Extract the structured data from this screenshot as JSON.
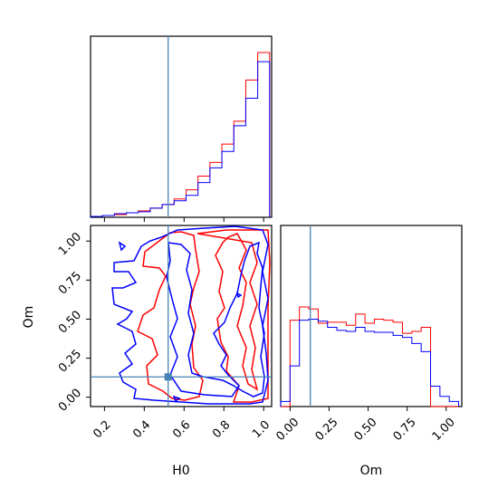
{
  "chart_data": {
    "type": "corner",
    "parameters": [
      "H0",
      "Om"
    ],
    "truth": {
      "H0": 0.52,
      "Om": 0.13
    },
    "truth_color": "#4682b4",
    "series": [
      {
        "color": "#ff0000"
      },
      {
        "color": "#0000ff"
      }
    ],
    "axes": {
      "H0": {
        "lim": [
          0.13,
          1.04
        ],
        "ticks": [
          0.2,
          0.4,
          0.6,
          0.8,
          1.0
        ],
        "tick_labels": [
          "0.2",
          "0.4",
          "0.6",
          "0.8",
          "1.0"
        ],
        "label": "H0"
      },
      "Om": {
        "lim": [
          -0.06,
          1.1
        ],
        "ticks": [
          0.0,
          0.25,
          0.5,
          0.75,
          1.0
        ],
        "tick_labels": [
          "0.00",
          "0.25",
          "0.50",
          "0.75",
          "1.00"
        ],
        "label": "Om"
      }
    },
    "hist_H0": {
      "bin_edges": [
        0.13,
        0.19,
        0.25,
        0.31,
        0.37,
        0.43,
        0.49,
        0.55,
        0.61,
        0.67,
        0.73,
        0.79,
        0.85,
        0.91,
        0.97,
        1.03
      ],
      "red": [
        1,
        2,
        3,
        5,
        7,
        10,
        14,
        20,
        30,
        45,
        60,
        80,
        105,
        150,
        180
      ],
      "blue": [
        1,
        2,
        4,
        5,
        6,
        10,
        14,
        18,
        24,
        38,
        54,
        72,
        100,
        130,
        170
      ]
    },
    "hist_Om": {
      "bin_edges": [
        -0.06,
        0.0,
        0.06,
        0.12,
        0.18,
        0.24,
        0.3,
        0.36,
        0.42,
        0.48,
        0.54,
        0.6,
        0.66,
        0.72,
        0.78,
        0.84,
        0.9,
        0.96,
        1.02,
        1.08
      ],
      "red": [
        0,
        85,
        98,
        96,
        82,
        83,
        83,
        80,
        91,
        82,
        86,
        85,
        83,
        72,
        74,
        78,
        0,
        0,
        0
      ],
      "blue": [
        5,
        40,
        85,
        86,
        84,
        78,
        75,
        74,
        78,
        74,
        73,
        73,
        70,
        68,
        62,
        54,
        20,
        10,
        5
      ]
    }
  }
}
